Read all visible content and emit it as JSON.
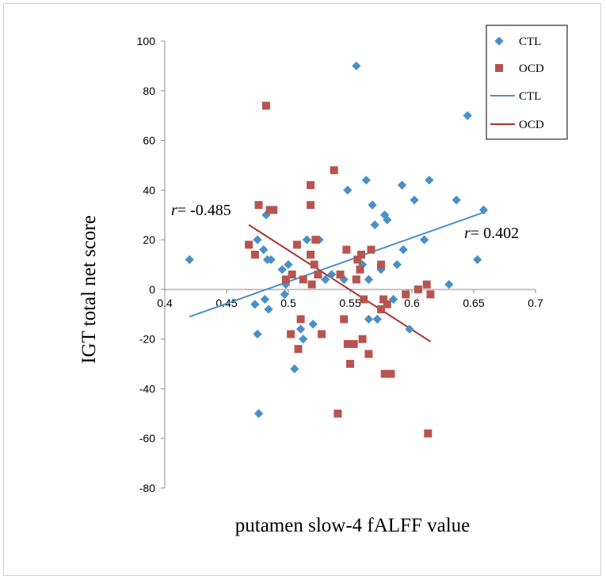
{
  "chart_data": {
    "type": "scatter",
    "title": "",
    "xlabel": "putamen slow-4 fALFF value",
    "ylabel": "IGT total net score",
    "xlim": [
      0.4,
      0.7
    ],
    "ylim": [
      -80,
      100
    ],
    "x_ticks": [
      "0.4",
      "0.45",
      "0.5",
      "0.55",
      "0.6",
      "0.65",
      "0.7"
    ],
    "y_ticks": [
      "100",
      "80",
      "60",
      "40",
      "20",
      "0",
      "-20",
      "-40",
      "-60",
      "-80"
    ],
    "legend_position": "top-right",
    "legend": [
      {
        "label": "CTL",
        "kind": "marker",
        "symbol": "diamond",
        "color": "#4a90c8"
      },
      {
        "label": "OCD",
        "kind": "marker",
        "symbol": "square",
        "color": "#b85450"
      },
      {
        "label": "CTL",
        "kind": "line",
        "color": "#4a90c8"
      },
      {
        "label": "OCD",
        "kind": "line",
        "color": "#a9322b"
      }
    ],
    "series": [
      {
        "name": "CTL",
        "symbol": "diamond",
        "color": "#4a90c8",
        "points": [
          [
            0.42,
            12
          ],
          [
            0.473,
            -6
          ],
          [
            0.475,
            20
          ],
          [
            0.475,
            -18
          ],
          [
            0.476,
            -50
          ],
          [
            0.48,
            16
          ],
          [
            0.481,
            -4
          ],
          [
            0.482,
            30
          ],
          [
            0.483,
            12
          ],
          [
            0.484,
            -8
          ],
          [
            0.486,
            12
          ],
          [
            0.495,
            8
          ],
          [
            0.497,
            -2
          ],
          [
            0.498,
            2
          ],
          [
            0.5,
            10
          ],
          [
            0.505,
            -32
          ],
          [
            0.51,
            -16
          ],
          [
            0.512,
            -20
          ],
          [
            0.515,
            20
          ],
          [
            0.52,
            -14
          ],
          [
            0.525,
            20
          ],
          [
            0.53,
            4
          ],
          [
            0.535,
            6
          ],
          [
            0.545,
            4
          ],
          [
            0.548,
            40
          ],
          [
            0.555,
            90
          ],
          [
            0.56,
            10
          ],
          [
            0.563,
            44
          ],
          [
            0.565,
            -12
          ],
          [
            0.565,
            4
          ],
          [
            0.568,
            34
          ],
          [
            0.57,
            26
          ],
          [
            0.572,
            -12
          ],
          [
            0.575,
            8
          ],
          [
            0.578,
            30
          ],
          [
            0.58,
            28
          ],
          [
            0.585,
            -4
          ],
          [
            0.588,
            10
          ],
          [
            0.592,
            42
          ],
          [
            0.593,
            16
          ],
          [
            0.598,
            -16
          ],
          [
            0.602,
            36
          ],
          [
            0.61,
            20
          ],
          [
            0.614,
            44
          ],
          [
            0.63,
            2
          ],
          [
            0.636,
            36
          ],
          [
            0.645,
            70
          ],
          [
            0.653,
            12
          ],
          [
            0.658,
            32
          ]
        ]
      },
      {
        "name": "OCD",
        "symbol": "square",
        "color": "#b85450",
        "points": [
          [
            0.468,
            18
          ],
          [
            0.473,
            14
          ],
          [
            0.476,
            34
          ],
          [
            0.482,
            74
          ],
          [
            0.485,
            32
          ],
          [
            0.488,
            32
          ],
          [
            0.498,
            4
          ],
          [
            0.502,
            -18
          ],
          [
            0.503,
            6
          ],
          [
            0.507,
            18
          ],
          [
            0.508,
            -24
          ],
          [
            0.51,
            -12
          ],
          [
            0.512,
            4
          ],
          [
            0.518,
            42
          ],
          [
            0.518,
            34
          ],
          [
            0.518,
            14
          ],
          [
            0.519,
            2
          ],
          [
            0.521,
            10
          ],
          [
            0.522,
            20
          ],
          [
            0.524,
            6
          ],
          [
            0.527,
            -18
          ],
          [
            0.537,
            48
          ],
          [
            0.54,
            -50
          ],
          [
            0.542,
            6
          ],
          [
            0.545,
            -12
          ],
          [
            0.547,
            16
          ],
          [
            0.548,
            -22
          ],
          [
            0.55,
            -30
          ],
          [
            0.553,
            -22
          ],
          [
            0.555,
            4
          ],
          [
            0.556,
            12
          ],
          [
            0.558,
            8
          ],
          [
            0.559,
            14
          ],
          [
            0.56,
            -20
          ],
          [
            0.561,
            -4
          ],
          [
            0.565,
            -26
          ],
          [
            0.567,
            16
          ],
          [
            0.575,
            -8
          ],
          [
            0.575,
            10
          ],
          [
            0.577,
            -4
          ],
          [
            0.578,
            -34
          ],
          [
            0.58,
            -6
          ],
          [
            0.583,
            -34
          ],
          [
            0.595,
            -2
          ],
          [
            0.605,
            0
          ],
          [
            0.612,
            2
          ],
          [
            0.613,
            -58
          ],
          [
            0.615,
            -2
          ]
        ]
      }
    ],
    "trendlines": [
      {
        "name": "CTL",
        "color": "#4a90c8",
        "from": [
          0.42,
          -11
        ],
        "to": [
          0.658,
          31
        ]
      },
      {
        "name": "OCD",
        "color": "#a9322b",
        "from": [
          0.468,
          26
        ],
        "to": [
          0.615,
          -21
        ]
      }
    ],
    "annotations": [
      {
        "italic": "r",
        "rest": "= -0.485"
      },
      {
        "italic": "r",
        "rest": "= 0.402"
      }
    ]
  }
}
